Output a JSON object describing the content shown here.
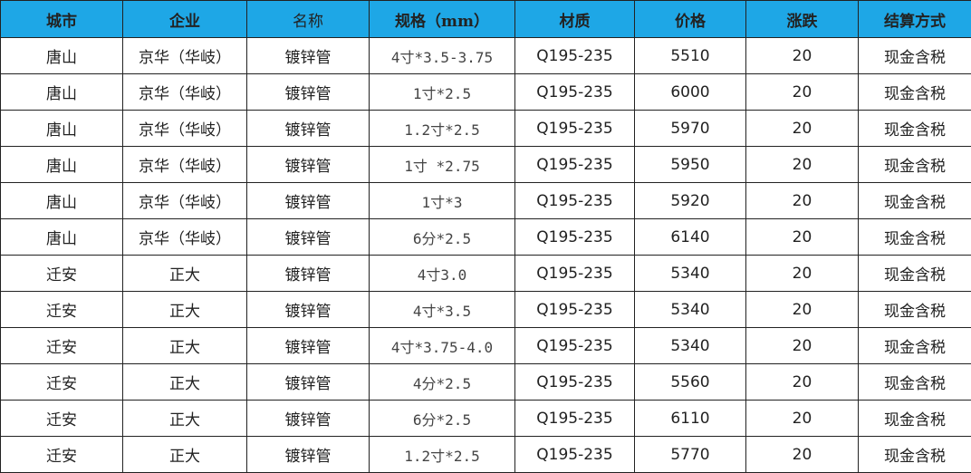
{
  "header_color": "#1ea7e6",
  "columns": [
    "城市",
    "企业",
    "名称",
    "规格（mm）",
    "材质",
    "价格",
    "涨跌",
    "结算方式"
  ],
  "rows": [
    [
      "唐山",
      "京华（华岐）",
      "镀锌管",
      "4寸*3.5-3.75",
      "Q195-235",
      "5510",
      "20",
      "现金含税"
    ],
    [
      "唐山",
      "京华（华岐）",
      "镀锌管",
      "1寸*2.5",
      "Q195-235",
      "6000",
      "20",
      "现金含税"
    ],
    [
      "唐山",
      "京华（华岐）",
      "镀锌管",
      "1.2寸*2.5",
      "Q195-235",
      "5970",
      "20",
      "现金含税"
    ],
    [
      "唐山",
      "京华（华岐）",
      "镀锌管",
      "1寸 *2.75",
      "Q195-235",
      "5950",
      "20",
      "现金含税"
    ],
    [
      "唐山",
      "京华（华岐）",
      "镀锌管",
      "1寸*3",
      "Q195-235",
      "5920",
      "20",
      "现金含税"
    ],
    [
      "唐山",
      "京华（华岐）",
      "镀锌管",
      "6分*2.5",
      "Q195-235",
      "6140",
      "20",
      "现金含税"
    ],
    [
      "迁安",
      "正大",
      "镀锌管",
      "4寸3.0",
      "Q195-235",
      "5340",
      "20",
      "现金含税"
    ],
    [
      "迁安",
      "正大",
      "镀锌管",
      "4寸*3.5",
      "Q195-235",
      "5340",
      "20",
      "现金含税"
    ],
    [
      "迁安",
      "正大",
      "镀锌管",
      "4寸*3.75-4.0",
      "Q195-235",
      "5340",
      "20",
      "现金含税"
    ],
    [
      "迁安",
      "正大",
      "镀锌管",
      "4分*2.5",
      "Q195-235",
      "5560",
      "20",
      "现金含税"
    ],
    [
      "迁安",
      "正大",
      "镀锌管",
      "6分*2.5",
      "Q195-235",
      "6110",
      "20",
      "现金含税"
    ],
    [
      "迁安",
      "正大",
      "镀锌管",
      "1.2寸*2.5",
      "Q195-235",
      "5770",
      "20",
      "现金含税"
    ]
  ]
}
